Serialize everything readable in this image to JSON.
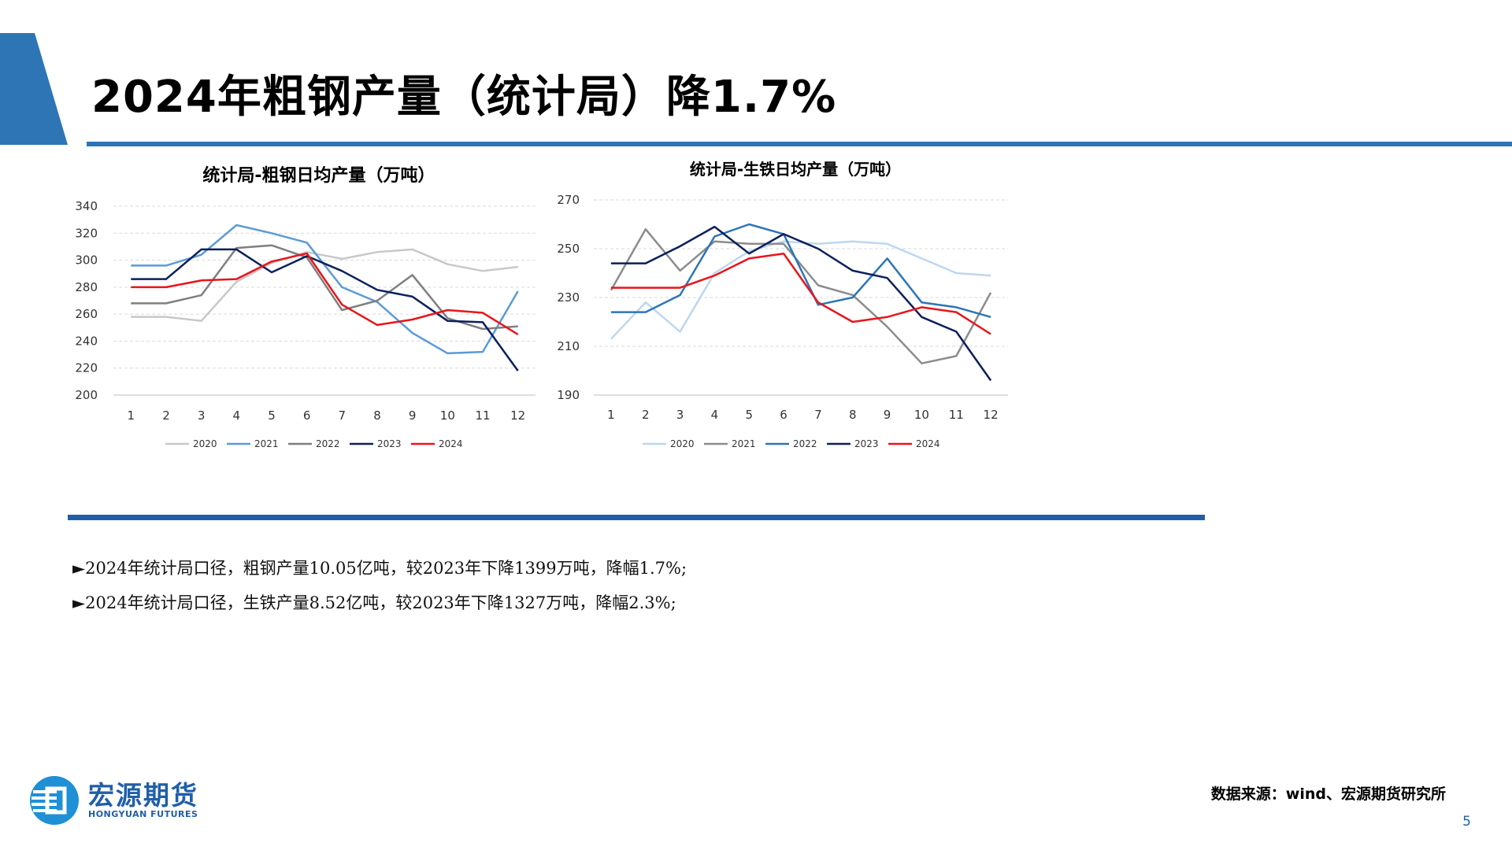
{
  "page": {
    "title": "2024年粗钢产量（统计局）降1.7%",
    "bullets": [
      "►2024年统计局口径，粗钢产量10.05亿吨，较2023年下降1399万吨，降幅1.7%;",
      "►2024年统计局口径，生铁产量8.52亿吨，较2023年下降1327万吨，降幅2.3%;"
    ],
    "logo_cn": "宏源期货",
    "logo_en": "HONGYUAN FUTURES",
    "source": "数据来源：wind、宏源期货研究所",
    "page_number": "5",
    "brand_color": "#2e75b6"
  },
  "chart_data": [
    {
      "type": "line",
      "title": "统计局-粗钢日均产量（万吨）",
      "x": [
        "1",
        "2",
        "3",
        "4",
        "5",
        "6",
        "7",
        "8",
        "9",
        "10",
        "11",
        "12"
      ],
      "ylim": [
        200,
        340
      ],
      "yticks": [
        200,
        220,
        240,
        260,
        280,
        300,
        320,
        340
      ],
      "grid": true,
      "legend_position": "bottom",
      "series": [
        {
          "name": "2020",
          "color": "#c8c8c8",
          "values": [
            258,
            258,
            255,
            284,
            298,
            306,
            301,
            306,
            308,
            297,
            292,
            295
          ]
        },
        {
          "name": "2021",
          "color": "#5b9bd5",
          "values": [
            296,
            296,
            304,
            326,
            320,
            313,
            280,
            269,
            246,
            231,
            232,
            277
          ]
        },
        {
          "name": "2022",
          "color": "#7f7f7f",
          "values": [
            268,
            268,
            274,
            309,
            311,
            302,
            263,
            270,
            289,
            257,
            249,
            251
          ]
        },
        {
          "name": "2023",
          "color": "#0b1f5c",
          "values": [
            286,
            286,
            308,
            308,
            291,
            303,
            292,
            278,
            273,
            255,
            254,
            218
          ]
        },
        {
          "name": "2024",
          "color": "#e8151b",
          "values": [
            280,
            280,
            285,
            286,
            299,
            305,
            267,
            252,
            256,
            263,
            261,
            245
          ]
        }
      ]
    },
    {
      "type": "line",
      "title": "统计局-生铁日均产量（万吨）",
      "x": [
        "1",
        "2",
        "3",
        "4",
        "5",
        "6",
        "7",
        "8",
        "9",
        "10",
        "11",
        "12"
      ],
      "ylim": [
        190,
        270
      ],
      "yticks": [
        190,
        210,
        230,
        250,
        270
      ],
      "grid": true,
      "legend_position": "bottom",
      "series": [
        {
          "name": "2020",
          "color": "#bdd7ee",
          "values": [
            213,
            228,
            216,
            240,
            249,
            253,
            252,
            253,
            252,
            246,
            240,
            239
          ]
        },
        {
          "name": "2021",
          "color": "#8c8c8c",
          "values": [
            233,
            258,
            241,
            253,
            252,
            252,
            235,
            231,
            218,
            203,
            206,
            232
          ]
        },
        {
          "name": "2022",
          "color": "#2e75b6",
          "values": [
            224,
            224,
            231,
            255,
            260,
            256,
            227,
            230,
            246,
            228,
            226,
            222
          ]
        },
        {
          "name": "2023",
          "color": "#0b1f5c",
          "values": [
            244,
            244,
            251,
            259,
            248,
            256,
            250,
            241,
            238,
            222,
            216,
            196
          ]
        },
        {
          "name": "2024",
          "color": "#e8151b",
          "values": [
            234,
            234,
            234,
            239,
            246,
            248,
            228,
            220,
            222,
            226,
            224,
            215
          ]
        }
      ]
    }
  ]
}
